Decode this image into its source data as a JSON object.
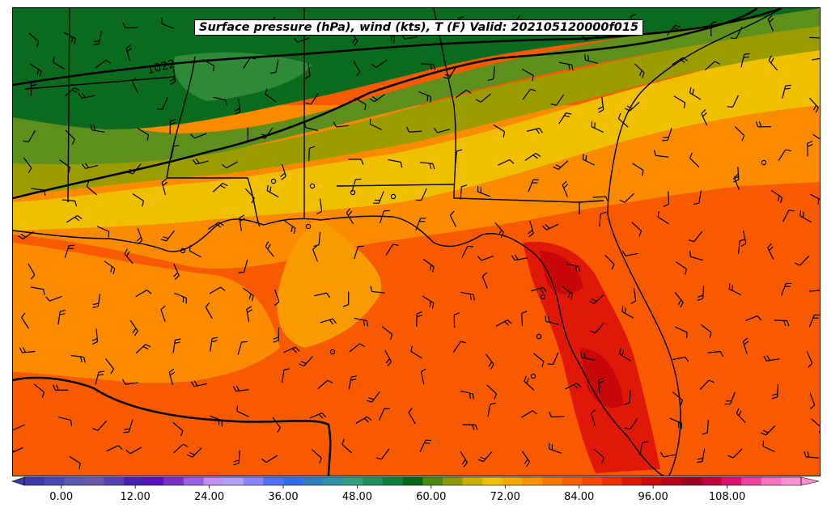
{
  "title": "Surface pressure (hPa), wind (kts), T (F) Valid: 202105120000f015",
  "isobar_label": "1022",
  "colorbar": {
    "min": -6,
    "max": 120,
    "tick_labels": [
      "0.00",
      "12.00",
      "24.00",
      "36.00",
      "48.00",
      "60.00",
      "72.00",
      "84.00",
      "96.00",
      "108.00"
    ],
    "tick_values": [
      0,
      12,
      24,
      36,
      48,
      60,
      72,
      84,
      96,
      108
    ],
    "colors": [
      "#3a3aa8",
      "#4a4ab4",
      "#5a5ab0",
      "#6a5aa8",
      "#5a40b0",
      "#4a20b0",
      "#5a10c0",
      "#7a30c8",
      "#9a60e0",
      "#c090f0",
      "#b0a0f8",
      "#8888f8",
      "#5070f8",
      "#3070f0",
      "#3080c0",
      "#3090a8",
      "#30a080",
      "#209060",
      "#108040",
      "#006818",
      "#4a8a10",
      "#8a9a00",
      "#c8b000",
      "#f0c000",
      "#f4a800",
      "#f89000",
      "#fa7800",
      "#fa6000",
      "#f84800",
      "#f03000",
      "#e01800",
      "#cc0808",
      "#b80018",
      "#a00020",
      "#c00040",
      "#e01070",
      "#f040a0",
      "#f870c0",
      "#ff90d0"
    ]
  },
  "map": {
    "color_fields": [
      "dark-green-band",
      "green-band",
      "olive-band",
      "yellow-band",
      "orange-band",
      "red-orange-band",
      "red-florida-band"
    ],
    "field_colors": {
      "dark_green": "#0a6a1e",
      "green": "#2f8a3a",
      "olive": "#5e8f1c",
      "khaki": "#9a9c00",
      "yellow": "#f0c000",
      "orange_light": "#f89a00",
      "orange": "#fa8a00",
      "red_orange": "#f85a00",
      "red": "#e01808",
      "deep_red": "#c80808"
    }
  }
}
